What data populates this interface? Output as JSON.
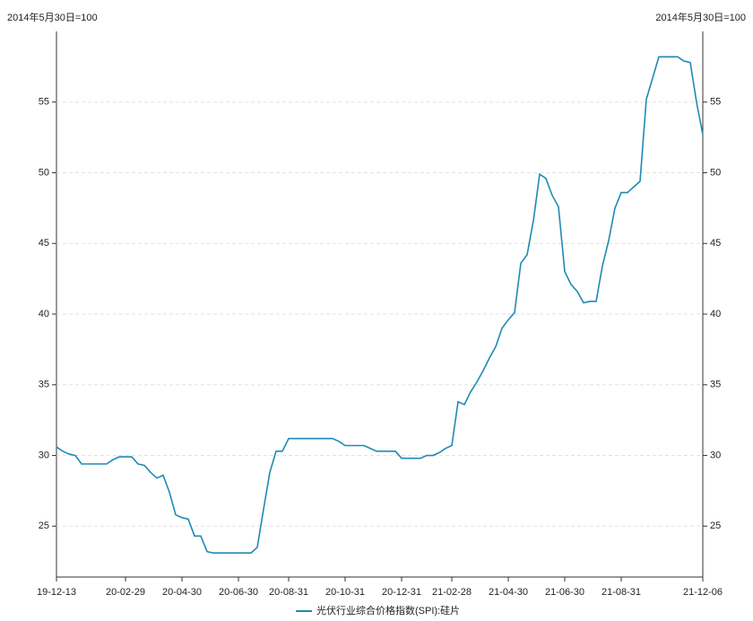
{
  "chart_data": {
    "type": "line",
    "y_label": "2014年5月30日=100",
    "y2_label": "2014年5月30日=100",
    "categories": [
      "19-12-13",
      null,
      null,
      null,
      null,
      null,
      null,
      null,
      null,
      null,
      null,
      "20-02-29",
      null,
      null,
      null,
      null,
      null,
      null,
      null,
      null,
      "20-04-30",
      null,
      null,
      null,
      null,
      null,
      null,
      null,
      null,
      "20-06-30",
      null,
      null,
      null,
      null,
      null,
      null,
      null,
      "20-08-31",
      null,
      null,
      null,
      null,
      null,
      null,
      null,
      null,
      "20-10-31",
      null,
      null,
      null,
      null,
      null,
      null,
      null,
      null,
      "20-12-31",
      null,
      null,
      null,
      null,
      null,
      null,
      null,
      "21-02-28",
      null,
      null,
      null,
      null,
      null,
      null,
      null,
      null,
      "21-04-30",
      null,
      null,
      null,
      null,
      null,
      null,
      null,
      null,
      "21-06-30",
      null,
      null,
      null,
      null,
      null,
      null,
      null,
      null,
      "21-08-31",
      null,
      null,
      null,
      null,
      null,
      null,
      null,
      null,
      null,
      null,
      null,
      null,
      "21-12-06"
    ],
    "series": [
      {
        "name": "光伏行业综合价格指数(SPI):硅片",
        "color": "#1f8ab3",
        "values": [
          30.6,
          30.3,
          30.1,
          30.0,
          29.4,
          29.4,
          29.4,
          29.4,
          29.4,
          29.7,
          29.9,
          29.9,
          29.9,
          29.4,
          29.3,
          28.8,
          28.4,
          28.6,
          27.4,
          25.8,
          25.6,
          25.5,
          24.3,
          24.3,
          23.2,
          23.1,
          23.1,
          23.1,
          23.1,
          23.1,
          23.1,
          23.1,
          23.5,
          26.2,
          28.8,
          30.3,
          30.3,
          31.2,
          31.2,
          31.2,
          31.2,
          31.2,
          31.2,
          31.2,
          31.2,
          31.0,
          30.7,
          30.7,
          30.7,
          30.7,
          30.5,
          30.3,
          30.3,
          30.3,
          30.3,
          29.8,
          29.8,
          29.8,
          29.8,
          30.0,
          30.0,
          30.2,
          30.5,
          30.7,
          33.8,
          33.6,
          34.5,
          35.2,
          36.0,
          36.9,
          37.7,
          39.0,
          39.6,
          40.1,
          43.6,
          44.2,
          46.6,
          49.9,
          49.6,
          48.4,
          47.6,
          43.0,
          42.1,
          41.6,
          40.8,
          40.9,
          40.9,
          43.4,
          45.2,
          47.5,
          48.6,
          48.6,
          49.0,
          49.4,
          55.2,
          56.7,
          58.2,
          58.2,
          58.2,
          58.2,
          57.9,
          57.8,
          55.0,
          52.7
        ]
      }
    ],
    "ylim": [
      21.4,
      60
    ],
    "yticks": [
      25,
      30,
      35,
      40,
      45,
      50,
      55
    ],
    "y2lim": [
      21.4,
      60
    ],
    "y2ticks": [
      25,
      30,
      35,
      40,
      45,
      50,
      55
    ],
    "grid": true
  }
}
